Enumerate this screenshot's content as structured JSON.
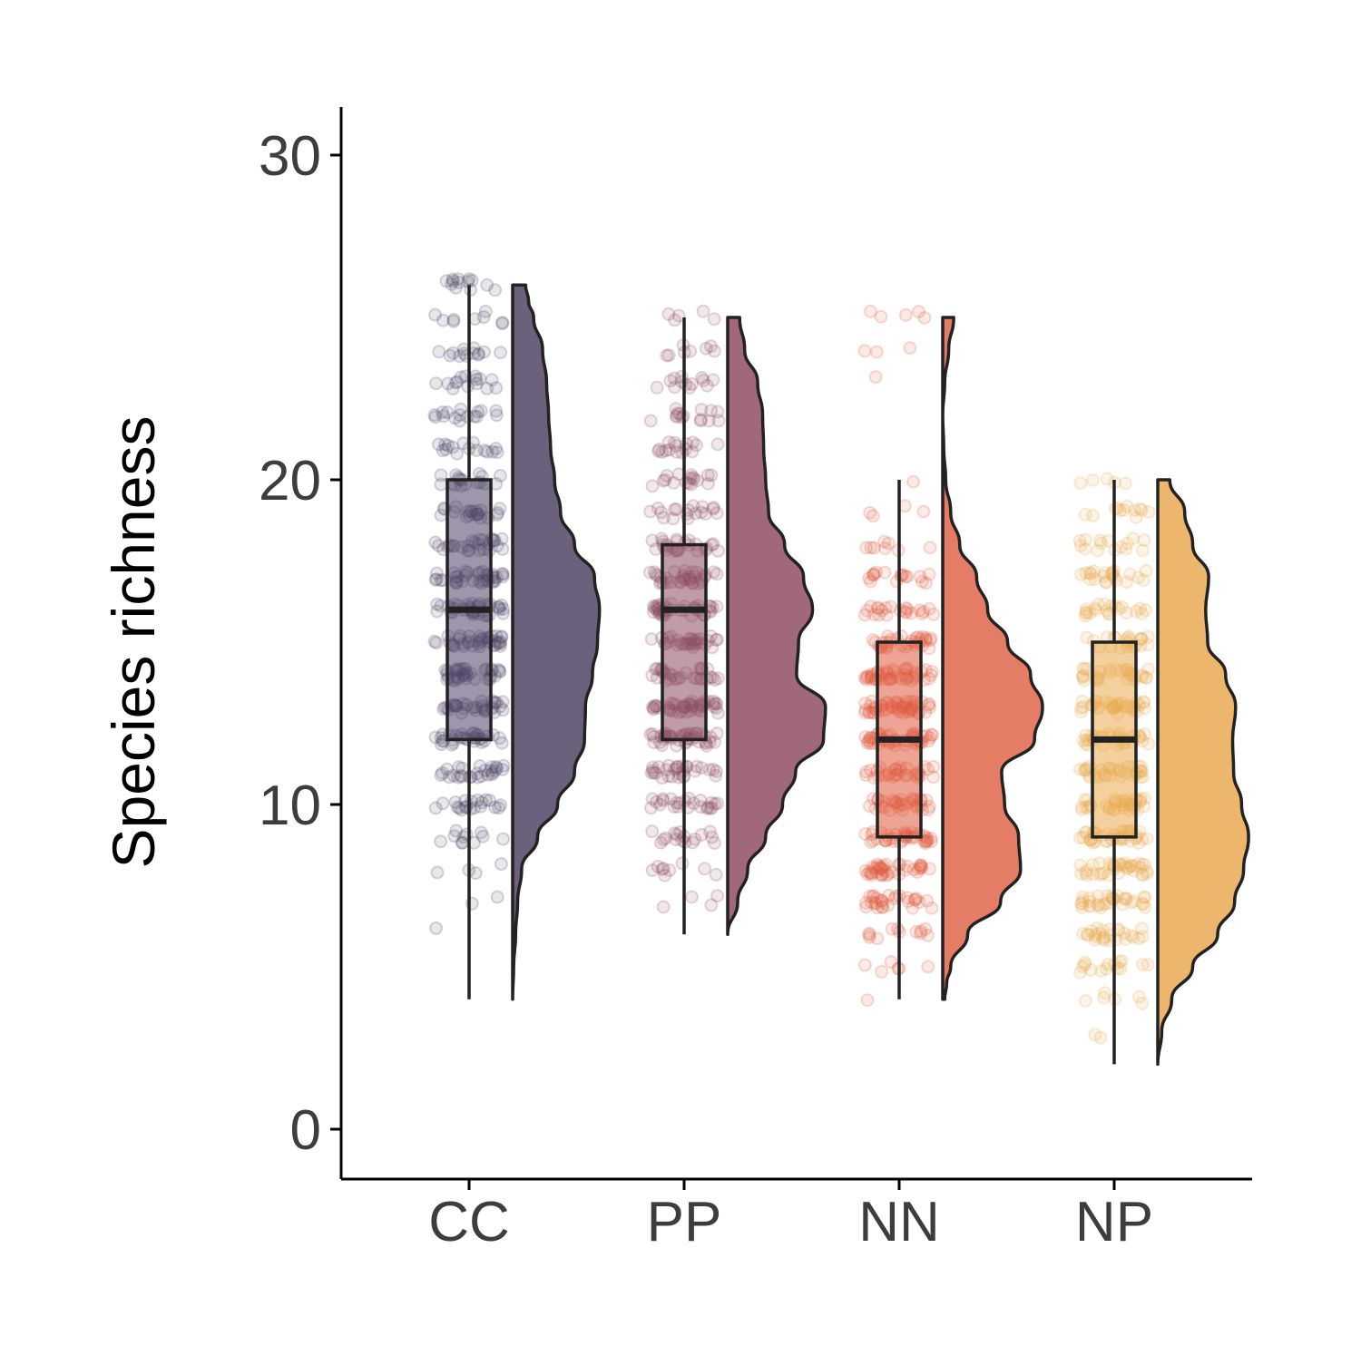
{
  "chart_data": {
    "type": "raincloud",
    "ylabel": "Species richness",
    "xlabel": "",
    "ylim": [
      -1.4,
      31.6
    ],
    "yticks": [
      0,
      10,
      20,
      30
    ],
    "categories": [
      "CC",
      "PP",
      "NN",
      "NP"
    ],
    "colors": [
      "#4e4266",
      "#8a4a5f",
      "#e0593e",
      "#e9aa4d"
    ],
    "half_violin_colors": [
      "#6c617c",
      "#a16879",
      "#e57c66",
      "#ecb66d"
    ],
    "boxplots": [
      {
        "category": "CC",
        "min": 4,
        "q1": 12,
        "median": 16,
        "q3": 20,
        "max": 26
      },
      {
        "category": "PP",
        "min": 6,
        "q1": 12,
        "median": 16,
        "q3": 18,
        "max": 25
      },
      {
        "category": "NN",
        "min": 4,
        "q1": 9,
        "median": 12,
        "q3": 15,
        "max": 20
      },
      {
        "category": "NP",
        "min": 2,
        "q1": 9,
        "median": 12,
        "q3": 15,
        "max": 20
      }
    ],
    "density": [
      {
        "category": "CC",
        "range": [
          4,
          26
        ],
        "profile": [
          [
            4,
            0.0
          ],
          [
            5,
            0.01
          ],
          [
            6,
            0.03
          ],
          [
            7,
            0.05
          ],
          [
            8,
            0.09
          ],
          [
            9,
            0.25
          ],
          [
            10,
            0.45
          ],
          [
            11,
            0.62
          ],
          [
            12,
            0.72
          ],
          [
            13,
            0.73
          ],
          [
            14,
            0.8
          ],
          [
            15,
            0.85
          ],
          [
            16,
            0.87
          ],
          [
            17,
            0.82
          ],
          [
            18,
            0.62
          ],
          [
            19,
            0.48
          ],
          [
            20,
            0.42
          ],
          [
            21,
            0.38
          ],
          [
            22,
            0.36
          ],
          [
            23,
            0.34
          ],
          [
            24,
            0.3
          ],
          [
            25,
            0.21
          ],
          [
            25.5,
            0.16
          ],
          [
            26,
            0.13
          ]
        ]
      },
      {
        "category": "PP",
        "range": [
          6,
          25
        ],
        "profile": [
          [
            6,
            0.0
          ],
          [
            7,
            0.1
          ],
          [
            8,
            0.2
          ],
          [
            9,
            0.38
          ],
          [
            10,
            0.55
          ],
          [
            11,
            0.68
          ],
          [
            12,
            0.96
          ],
          [
            13,
            0.98
          ],
          [
            14,
            0.69
          ],
          [
            15,
            0.71
          ],
          [
            16,
            0.85
          ],
          [
            17,
            0.76
          ],
          [
            18,
            0.57
          ],
          [
            19,
            0.41
          ],
          [
            20,
            0.38
          ],
          [
            21,
            0.36
          ],
          [
            22,
            0.35
          ],
          [
            23,
            0.3
          ],
          [
            24,
            0.17
          ],
          [
            25,
            0.12
          ]
        ]
      },
      {
        "category": "NN",
        "range": [
          4,
          25
        ],
        "profile": [
          [
            4,
            0.02
          ],
          [
            4.5,
            0.04
          ],
          [
            5,
            0.08
          ],
          [
            6,
            0.25
          ],
          [
            7,
            0.58
          ],
          [
            8,
            0.78
          ],
          [
            9,
            0.76
          ],
          [
            10,
            0.62
          ],
          [
            11,
            0.59
          ],
          [
            12,
            0.92
          ],
          [
            13,
            1.0
          ],
          [
            14,
            0.88
          ],
          [
            15,
            0.65
          ],
          [
            16,
            0.45
          ],
          [
            17,
            0.34
          ],
          [
            18,
            0.17
          ],
          [
            19,
            0.08
          ],
          [
            20,
            0.03
          ],
          [
            21,
            0.01
          ],
          [
            22,
            0.0
          ],
          [
            23,
            0.02
          ],
          [
            24,
            0.06
          ],
          [
            25,
            0.11
          ]
        ]
      },
      {
        "category": "NP",
        "range": [
          2,
          20
        ],
        "profile": [
          [
            2,
            0.0
          ],
          [
            3,
            0.04
          ],
          [
            4,
            0.14
          ],
          [
            5,
            0.35
          ],
          [
            6,
            0.6
          ],
          [
            7,
            0.77
          ],
          [
            8,
            0.86
          ],
          [
            9,
            0.91
          ],
          [
            10,
            0.84
          ],
          [
            11,
            0.76
          ],
          [
            12,
            0.75
          ],
          [
            13,
            0.78
          ],
          [
            14,
            0.68
          ],
          [
            15,
            0.5
          ],
          [
            16,
            0.48
          ],
          [
            17,
            0.51
          ],
          [
            18,
            0.35
          ],
          [
            19,
            0.27
          ],
          [
            20,
            0.12
          ]
        ]
      }
    ],
    "grid": false,
    "legend": "none"
  }
}
